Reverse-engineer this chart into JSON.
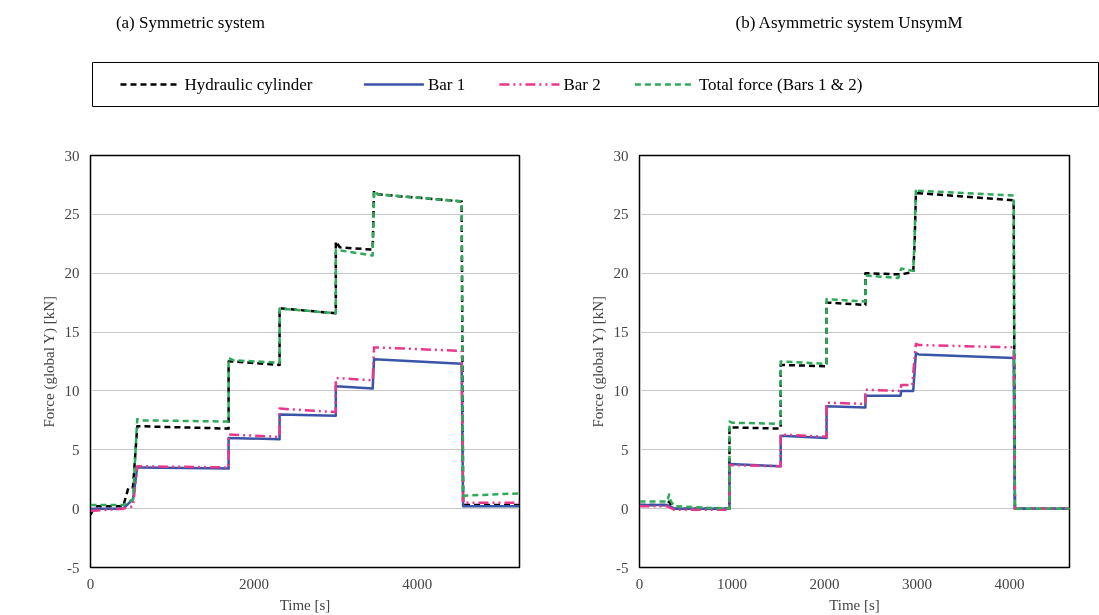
{
  "chart_data": [
    {
      "type": "line",
      "title": "(a) Symmetric system",
      "xlabel": "Time [s]",
      "ylabel": "Force (global Y) [kN]",
      "xlim": [
        0,
        5250
      ],
      "ylim": [
        -5,
        30
      ],
      "xticks": [
        0,
        2000,
        4000
      ],
      "yticks": [
        -5,
        0,
        5,
        10,
        15,
        20,
        25,
        30
      ],
      "grid": "y",
      "legend": "top",
      "marker": "none",
      "series": [
        {
          "name": "Hydraulic cylinder",
          "color": "#000000",
          "line_style": "dashed",
          "x": [
            0,
            60,
            400,
            465,
            520,
            572,
            600,
            1690,
            1690,
            1750,
            2314,
            2314,
            2350,
            3002,
            3002,
            3050,
            3453,
            3470,
            3520,
            4542,
            4560,
            5250
          ],
          "values": [
            -0.5,
            0.2,
            0.2,
            1.8,
            1.8,
            7,
            7,
            6.8,
            12.5,
            12.5,
            12.2,
            17,
            17,
            16.6,
            22.7,
            22.2,
            22,
            27,
            26.7,
            26.1,
            0.3,
            0.3
          ]
        },
        {
          "name": "Bar 1",
          "color": "#3a55a8",
          "line_style": "solid",
          "x": [
            0,
            400,
            520,
            572,
            600,
            1690,
            1690,
            2314,
            2314,
            3002,
            3002,
            3453,
            3470,
            4542,
            4560,
            5250
          ],
          "values": [
            0,
            0,
            0.8,
            3.5,
            3.5,
            3.4,
            6,
            5.9,
            8,
            7.9,
            10.4,
            10.2,
            12.7,
            12.3,
            0.2,
            0.2
          ]
        },
        {
          "name": "Bar 2",
          "color": "#e8388a",
          "line_style": "dotted",
          "x": [
            0,
            400,
            520,
            572,
            600,
            1690,
            1690,
            2314,
            2314,
            3002,
            3002,
            3453,
            3470,
            4542,
            4560,
            5250
          ],
          "values": [
            -0.2,
            0,
            0.2,
            3.6,
            3.6,
            3.5,
            6.3,
            6.1,
            8.5,
            8.2,
            11.1,
            10.9,
            13.7,
            13.4,
            0.5,
            0.5
          ]
        },
        {
          "name": "Total force (Bars 1 & 2)",
          "color": "#2eab5a",
          "line_style": "dashed",
          "x": [
            0,
            400,
            520,
            572,
            600,
            1690,
            1690,
            1750,
            2314,
            2314,
            3002,
            3002,
            3453,
            3470,
            3520,
            4542,
            4560,
            5250
          ],
          "values": [
            0.3,
            0.3,
            0.8,
            7.6,
            7.5,
            7.4,
            12.8,
            12.6,
            12.4,
            17,
            16.6,
            22,
            21.5,
            27,
            26.7,
            26.1,
            1.1,
            1.3
          ]
        }
      ]
    },
    {
      "type": "line",
      "title": "(b) Asymmetric system UnsymM",
      "xlabel": "Time [s]",
      "ylabel": "Force (global Y) [kN]",
      "xlim": [
        0,
        4650
      ],
      "ylim": [
        -5,
        30
      ],
      "xticks": [
        0,
        1000,
        2000,
        3000,
        4000
      ],
      "yticks": [
        -5,
        0,
        5,
        10,
        15,
        20,
        25,
        30
      ],
      "grid": "y",
      "marker": "none",
      "series": [
        {
          "color": "#000000",
          "line_style": "dashed",
          "x": [
            0,
            300,
            320,
            340,
            380,
            973,
            973,
            1000,
            1527,
            1527,
            1560,
            2023,
            2023,
            2060,
            2443,
            2443,
            2824,
            2960,
            2975,
            2989,
            3020,
            4046,
            4060,
            4650
          ],
          "values": [
            0.3,
            0.3,
            0.6,
            0.3,
            0,
            0,
            6.9,
            6.9,
            6.8,
            12.2,
            12.2,
            12.1,
            17.5,
            17.5,
            17.3,
            20,
            19.9,
            20.1,
            22.5,
            26.8,
            26.8,
            26.2,
            0,
            0
          ]
        },
        {
          "color": "#3a55a8",
          "line_style": "solid",
          "x": [
            0,
            300,
            380,
            973,
            973,
            1527,
            1527,
            2023,
            2023,
            2443,
            2443,
            2824,
            2830,
            2960,
            2989,
            3020,
            4046,
            4060,
            4650
          ],
          "values": [
            0.3,
            0.3,
            0,
            0,
            3.8,
            3.6,
            6.2,
            6,
            8.7,
            8.6,
            9.6,
            9.6,
            10,
            10,
            13.2,
            13.1,
            12.8,
            0,
            0
          ]
        },
        {
          "color": "#e8388a",
          "line_style": "dotted",
          "x": [
            0,
            300,
            380,
            973,
            973,
            1527,
            1527,
            2023,
            2023,
            2443,
            2443,
            2824,
            2830,
            2950,
            2960,
            2989,
            3020,
            4046,
            4060,
            4650
          ],
          "values": [
            0.2,
            0.2,
            -0.1,
            -0.1,
            3.7,
            3.6,
            6.3,
            6.1,
            9,
            8.9,
            10.1,
            10,
            10.5,
            10.5,
            11.5,
            14,
            13.9,
            13.7,
            0,
            0
          ]
        },
        {
          "color": "#2eab5a",
          "line_style": "dashed",
          "x": [
            0,
            300,
            320,
            340,
            380,
            973,
            973,
            1000,
            1527,
            1527,
            2023,
            2023,
            2443,
            2443,
            2800,
            2830,
            2960,
            2975,
            2989,
            3020,
            4046,
            4060,
            4650
          ],
          "values": [
            0.6,
            0.6,
            1.2,
            0.6,
            0.2,
            0,
            7.4,
            7.3,
            7.2,
            12.5,
            12.3,
            17.8,
            17.6,
            19.8,
            19.6,
            20.4,
            20.2,
            23,
            27.2,
            27,
            26.6,
            0,
            0
          ]
        }
      ]
    }
  ]
}
